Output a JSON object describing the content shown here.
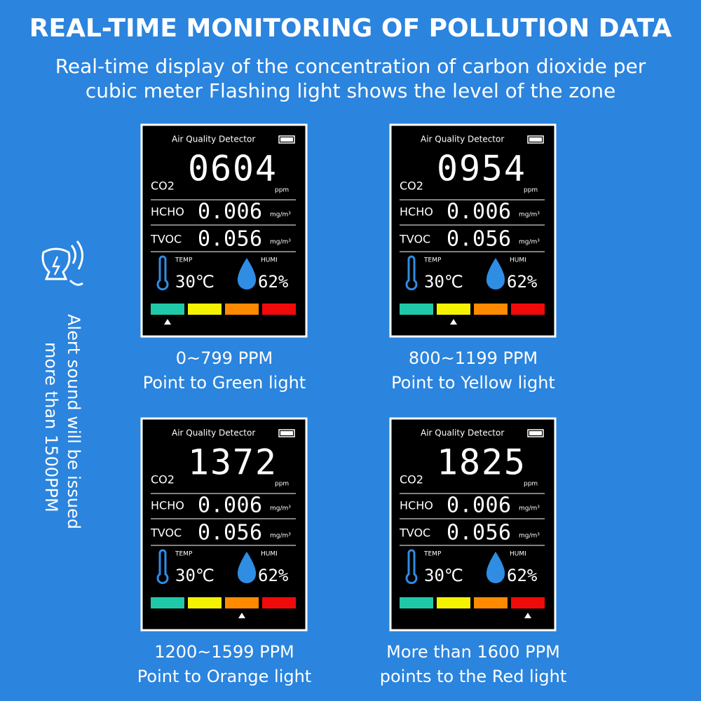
{
  "header": {
    "title": "REAL-TIME MONITORING OF POLLUTION DATA",
    "subtitle_lines": [
      "Real-time display of the concentration of carbon dioxide per",
      "cubic meter Flashing light shows the level of the zone"
    ]
  },
  "side_note": {
    "lines": [
      "Alert sound will be issued",
      "more than 1500PPM"
    ]
  },
  "screen_labels": {
    "device_title": "Air Quality Detector",
    "co2": "CO2",
    "co2_unit": "ppm",
    "hcho": "HCHO",
    "tvoc": "TVOC",
    "gas_unit": "mg/m³",
    "temp": "TEMP",
    "humi": "HUMI"
  },
  "panels": [
    {
      "co2": "0604",
      "hcho": "0.006",
      "tvoc": "0.056",
      "temp": "30℃",
      "humi": "62%",
      "caption": [
        "0~799 PPM",
        "Point to Green light"
      ]
    },
    {
      "co2": "0954",
      "hcho": "0.006",
      "tvoc": "0.056",
      "temp": "30℃",
      "humi": "62%",
      "caption": [
        "800~1199 PPM",
        "Point to Yellow light"
      ]
    },
    {
      "co2": "1372",
      "hcho": "0.006",
      "tvoc": "0.056",
      "temp": "30℃",
      "humi": "62%",
      "caption": [
        "1200~1599 PPM",
        "Point to Orange light"
      ]
    },
    {
      "co2": "1825",
      "hcho": "0.006",
      "tvoc": "0.056",
      "temp": "30℃",
      "humi": "62%",
      "caption": [
        "More than 1600 PPM",
        "points to the Red light"
      ]
    }
  ]
}
